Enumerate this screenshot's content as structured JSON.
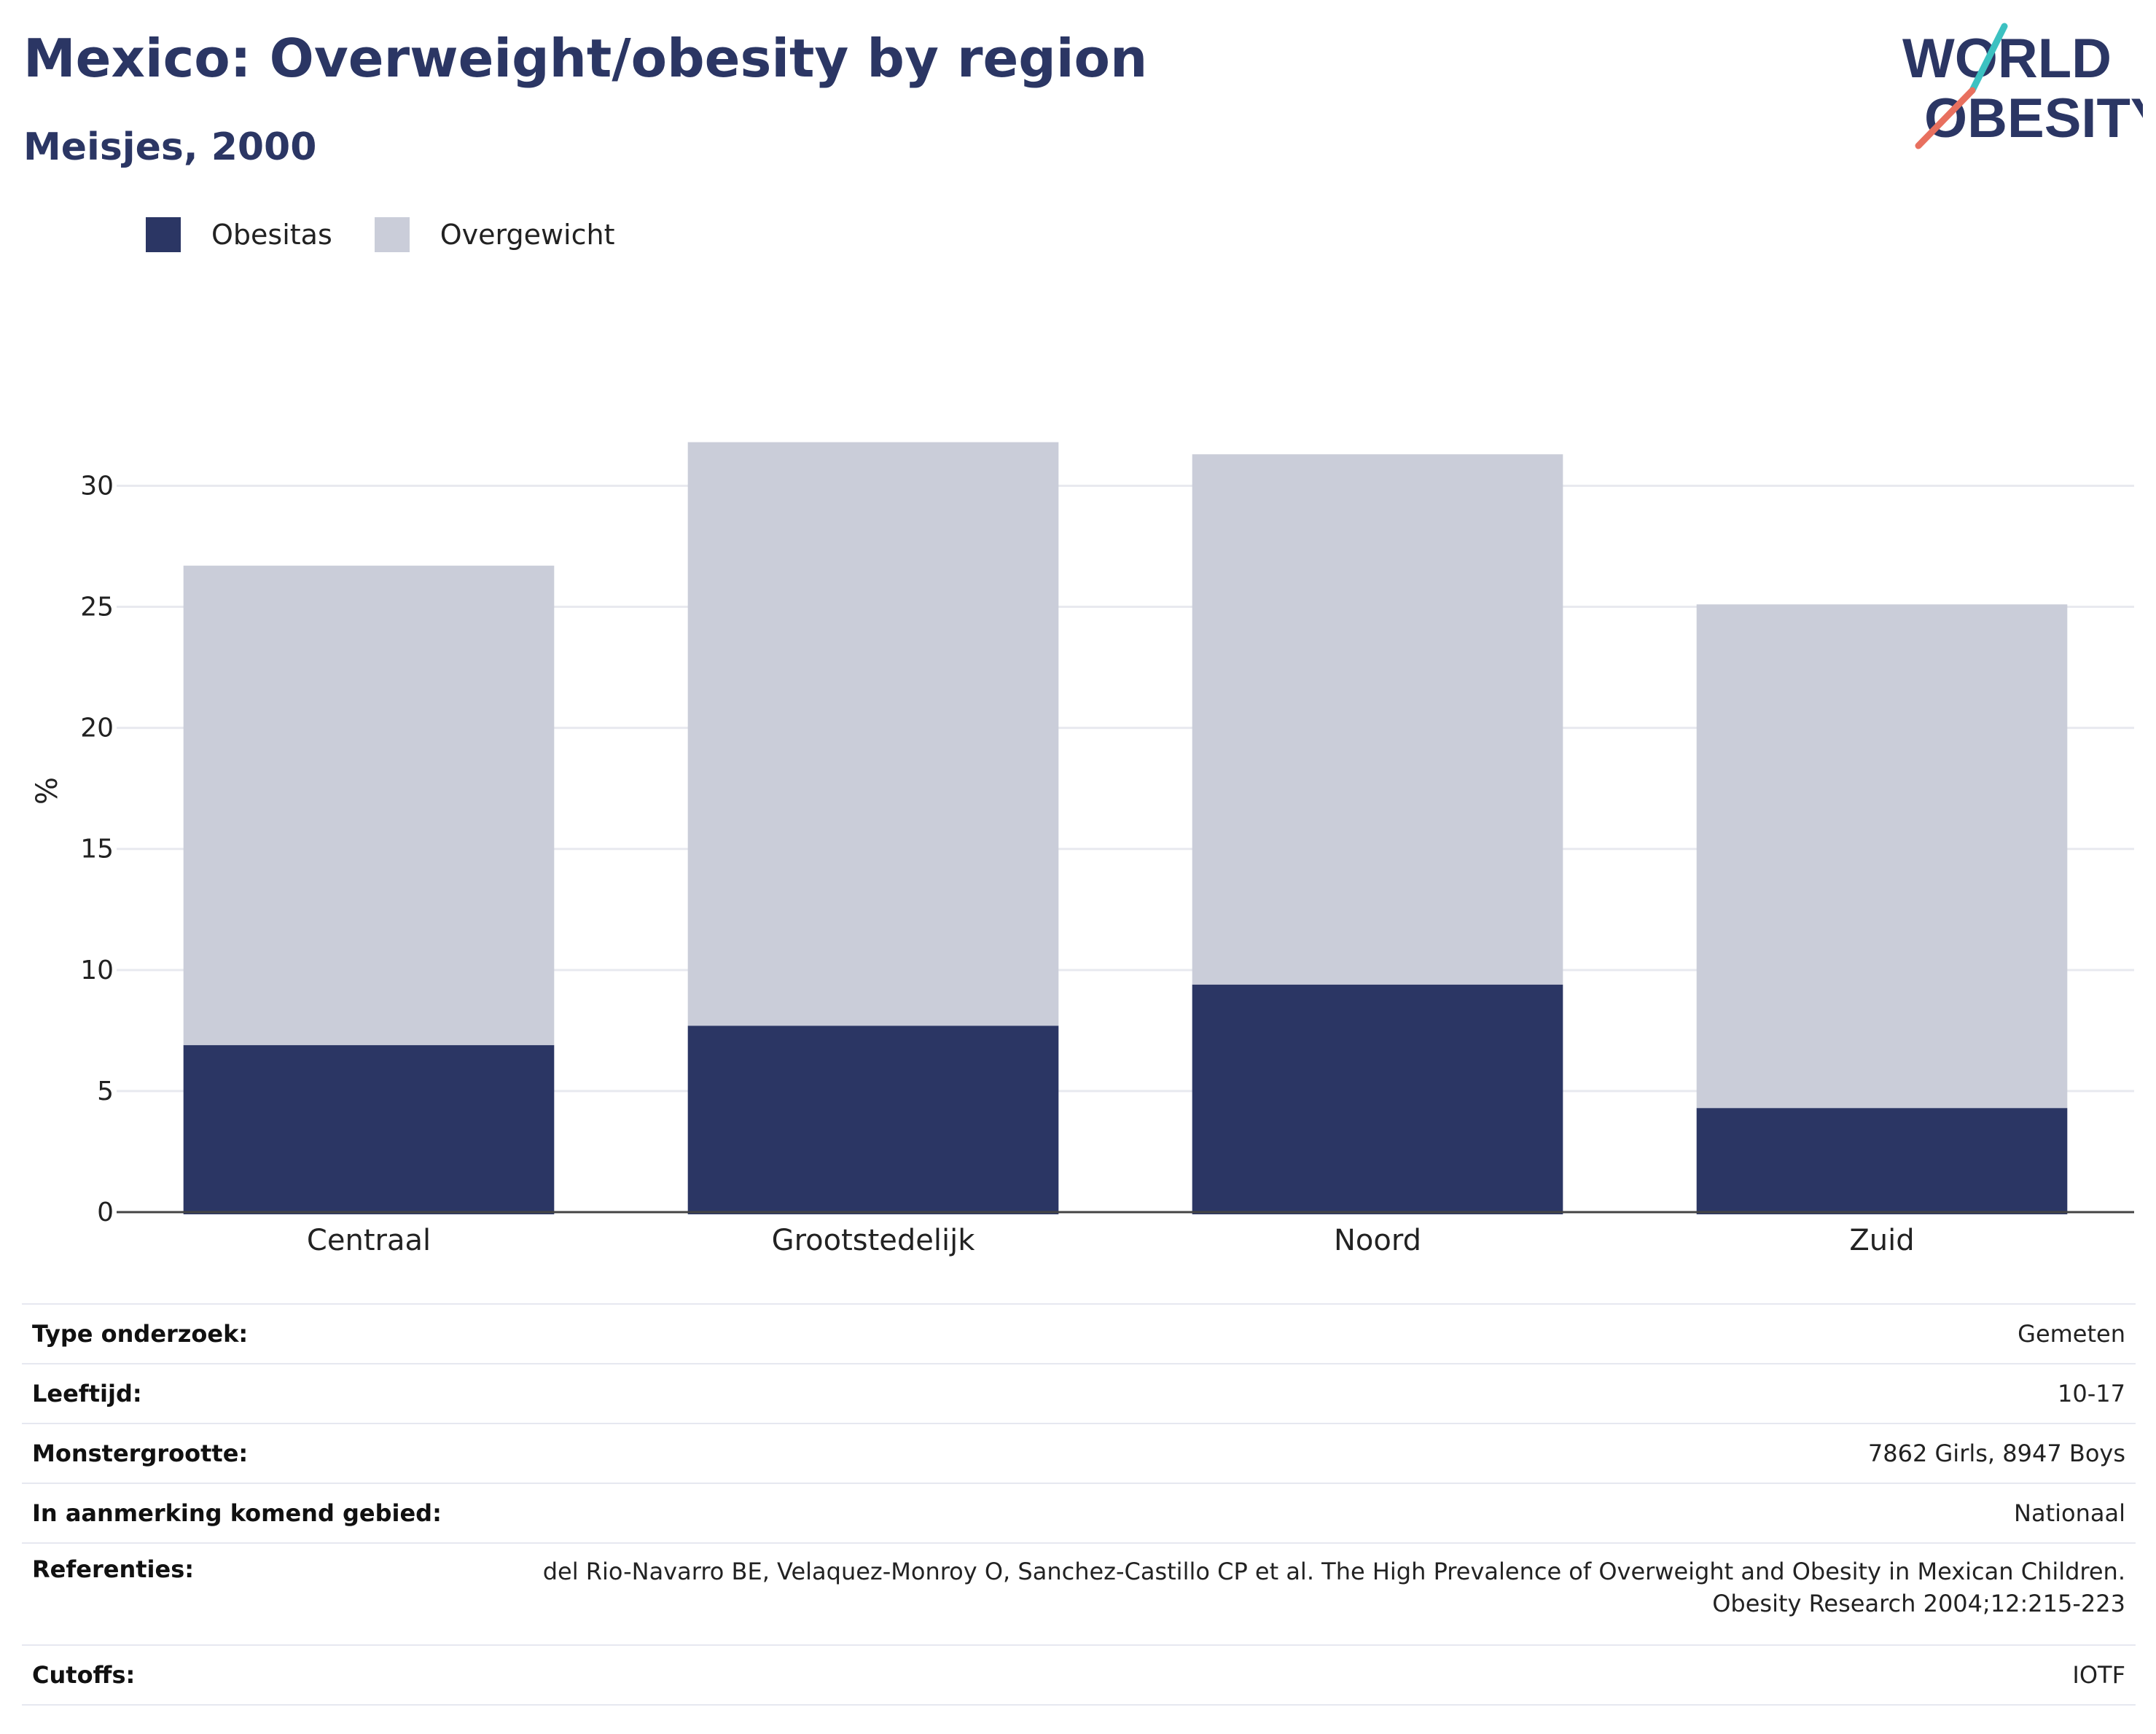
{
  "title": "Mexico: Overweight/obesity by region",
  "subtitle": "Meisjes, 2000",
  "logo": {
    "line1": "WORLD",
    "line2": "OBESITY",
    "accent_colors": [
      "#3cc1c1",
      "#e8705f"
    ],
    "text_color": "#2b3664"
  },
  "colors": {
    "obesitas": "#2b3664",
    "overgewicht": "#cacdd9",
    "gridline": "#e8e9ef",
    "axis": "#444444"
  },
  "chart_data": {
    "type": "bar",
    "stacked": true,
    "categories": [
      "Centraal",
      "Grootstedelijk",
      "Noord",
      "Zuid"
    ],
    "series": [
      {
        "name": "Obesitas",
        "values": [
          6.9,
          7.7,
          9.4,
          4.3
        ]
      },
      {
        "name": "Overgewicht",
        "values": [
          19.8,
          24.1,
          21.9,
          20.8
        ]
      }
    ],
    "ylabel": "%",
    "xlabel": "",
    "ylim": [
      0,
      32
    ],
    "yticks": [
      0,
      5,
      10,
      15,
      20,
      25,
      30
    ],
    "legend_position": "top-left",
    "grid": true
  },
  "info_table": [
    {
      "key": "Type onderzoek:",
      "value": "Gemeten"
    },
    {
      "key": "Leeftijd:",
      "value": "10-17"
    },
    {
      "key": "Monstergrootte:",
      "value": "7862 Girls, 8947 Boys"
    },
    {
      "key": "In aanmerking komend gebied:",
      "value": "Nationaal"
    },
    {
      "key": "Referenties:",
      "value": "del Rio-Navarro BE, Velaquez-Monroy O, Sanchez-Castillo CP et al. The High Prevalence of Overweight and Obesity in Mexican Children. Obesity Research 2004;12:215-223"
    },
    {
      "key": "Cutoffs:",
      "value": "IOTF"
    }
  ]
}
